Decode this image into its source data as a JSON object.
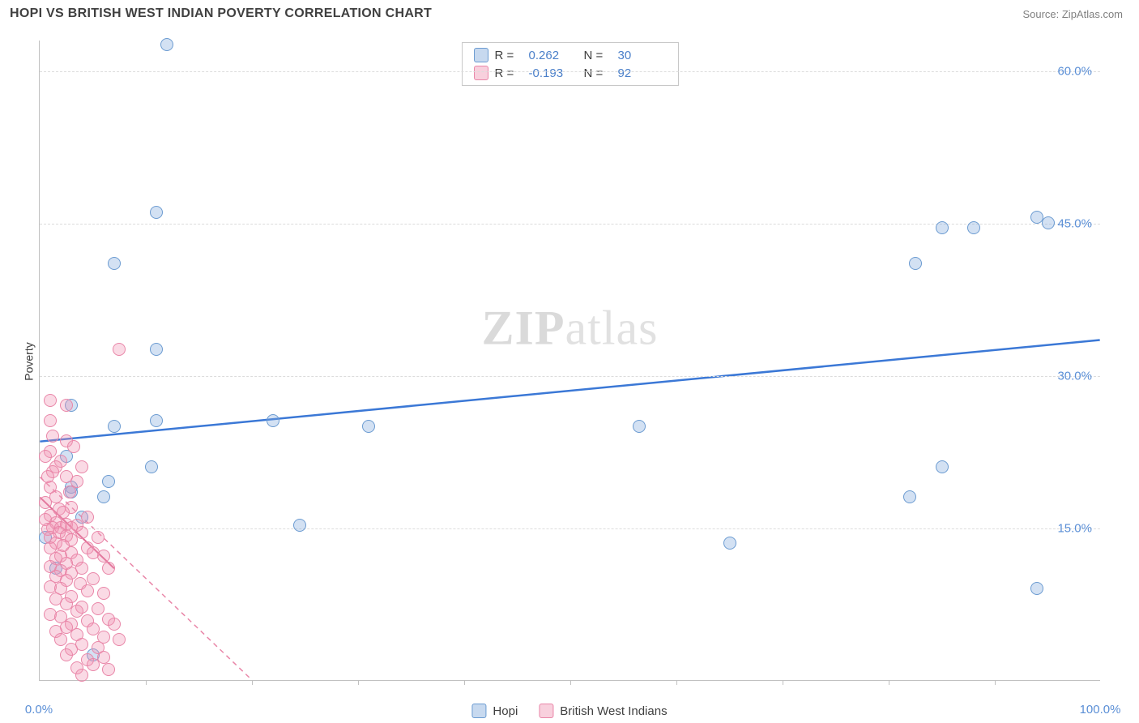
{
  "title": "HOPI VS BRITISH WEST INDIAN POVERTY CORRELATION CHART",
  "source": "Source: ZipAtlas.com",
  "ylabel": "Poverty",
  "watermark": {
    "bold": "ZIP",
    "rest": "atlas"
  },
  "chart": {
    "type": "scatter",
    "xlim": [
      0,
      100
    ],
    "ylim": [
      0,
      63
    ],
    "yticks": [
      15,
      30,
      45,
      60
    ],
    "ytick_labels": [
      "15.0%",
      "30.0%",
      "45.0%",
      "60.0%"
    ],
    "xtick_marks": [
      10,
      20,
      30,
      40,
      50,
      60,
      70,
      80,
      90
    ],
    "xtick_labels": [
      {
        "x": 0,
        "label": "0.0%"
      },
      {
        "x": 100,
        "label": "100.0%"
      }
    ],
    "grid_color": "#dcdcdc",
    "axis_color": "#c0c0c0",
    "background_color": "#ffffff",
    "tick_label_color": "#5b8fd6",
    "marker_size": 16,
    "series": [
      {
        "name": "Hopi",
        "color_fill": "rgba(130,170,220,0.35)",
        "color_stroke": "#6b9bd1",
        "r_value": "0.262",
        "n_value": "30",
        "trend": {
          "x1": 0,
          "y1": 23.5,
          "x2": 100,
          "y2": 33.5,
          "stroke": "#3b78d6",
          "width": 2.5,
          "dash": "none"
        },
        "points": [
          [
            12,
            62.5
          ],
          [
            11,
            46
          ],
          [
            7,
            41
          ],
          [
            11,
            32.5
          ],
          [
            3,
            27
          ],
          [
            7,
            25
          ],
          [
            11,
            25.5
          ],
          [
            22,
            25.5
          ],
          [
            31,
            25
          ],
          [
            56.5,
            25
          ],
          [
            10.5,
            21
          ],
          [
            3,
            19
          ],
          [
            3,
            18.5
          ],
          [
            6,
            18
          ],
          [
            6.5,
            19.5
          ],
          [
            24.5,
            15.2
          ],
          [
            5,
            2.5
          ],
          [
            85,
            44.5
          ],
          [
            88,
            44.5
          ],
          [
            94,
            45.5
          ],
          [
            95,
            45
          ],
          [
            82.5,
            41
          ],
          [
            85,
            21
          ],
          [
            82,
            18
          ],
          [
            65,
            13.5
          ],
          [
            94,
            9
          ],
          [
            2.5,
            22
          ],
          [
            4,
            16
          ],
          [
            0.5,
            14
          ],
          [
            1.5,
            11
          ]
        ]
      },
      {
        "name": "British West Indians",
        "color_fill": "rgba(240,150,180,0.35)",
        "color_stroke": "#e986a8",
        "r_value": "-0.193",
        "n_value": "92",
        "trend": {
          "x1": 0,
          "y1": 20,
          "x2": 20,
          "y2": 0,
          "stroke": "#e986a8",
          "width": 1.5,
          "dash": "6,5"
        },
        "trend_solid": {
          "x1": 0,
          "y1": 18,
          "x2": 7,
          "y2": 11,
          "stroke": "#dc6b93",
          "width": 2,
          "dash": "none"
        },
        "points": [
          [
            7.5,
            32.5
          ],
          [
            1,
            27.5
          ],
          [
            2.5,
            27
          ],
          [
            1,
            25.5
          ],
          [
            1.2,
            24
          ],
          [
            2.5,
            23.5
          ],
          [
            3.2,
            23
          ],
          [
            1,
            22.5
          ],
          [
            0.5,
            22
          ],
          [
            2,
            21.5
          ],
          [
            1.5,
            21
          ],
          [
            4,
            21
          ],
          [
            1.2,
            20.5
          ],
          [
            0.8,
            20
          ],
          [
            2.5,
            20
          ],
          [
            3.5,
            19.5
          ],
          [
            1,
            19
          ],
          [
            2.8,
            18.5
          ],
          [
            1.5,
            18
          ],
          [
            0.5,
            17.5
          ],
          [
            3,
            17
          ],
          [
            1.8,
            16.8
          ],
          [
            2.2,
            16.5
          ],
          [
            1,
            16.2
          ],
          [
            4.5,
            16
          ],
          [
            0.5,
            15.8
          ],
          [
            1.5,
            15.5
          ],
          [
            2.5,
            15.3
          ],
          [
            3.5,
            15.2
          ],
          [
            1.2,
            15
          ],
          [
            2,
            15
          ],
          [
            3,
            15
          ],
          [
            0.8,
            14.8
          ],
          [
            1.8,
            14.5
          ],
          [
            4,
            14.5
          ],
          [
            2.5,
            14.2
          ],
          [
            1,
            14
          ],
          [
            5.5,
            14
          ],
          [
            3,
            13.8
          ],
          [
            1.5,
            13.5
          ],
          [
            2.2,
            13.2
          ],
          [
            4.5,
            13
          ],
          [
            1,
            13
          ],
          [
            3,
            12.5
          ],
          [
            5,
            12.5
          ],
          [
            2,
            12.2
          ],
          [
            1.5,
            12
          ],
          [
            6,
            12.2
          ],
          [
            3.5,
            11.8
          ],
          [
            2.5,
            11.5
          ],
          [
            1,
            11.2
          ],
          [
            4,
            11
          ],
          [
            6.5,
            11
          ],
          [
            2,
            10.8
          ],
          [
            3,
            10.5
          ],
          [
            1.5,
            10.2
          ],
          [
            5,
            10
          ],
          [
            2.5,
            9.8
          ],
          [
            3.8,
            9.5
          ],
          [
            1,
            9.2
          ],
          [
            2,
            9
          ],
          [
            4.5,
            8.8
          ],
          [
            6,
            8.5
          ],
          [
            3,
            8.2
          ],
          [
            1.5,
            8
          ],
          [
            2.5,
            7.5
          ],
          [
            4,
            7.2
          ],
          [
            5.5,
            7
          ],
          [
            3.5,
            6.8
          ],
          [
            1,
            6.5
          ],
          [
            2,
            6.2
          ],
          [
            6.5,
            6
          ],
          [
            4.5,
            5.8
          ],
          [
            3,
            5.5
          ],
          [
            7,
            5.5
          ],
          [
            2.5,
            5.2
          ],
          [
            5,
            5
          ],
          [
            1.5,
            4.8
          ],
          [
            3.5,
            4.5
          ],
          [
            6,
            4.2
          ],
          [
            2,
            4
          ],
          [
            7.5,
            4
          ],
          [
            4,
            3.5
          ],
          [
            5.5,
            3.2
          ],
          [
            3,
            3
          ],
          [
            2.5,
            2.5
          ],
          [
            6,
            2.2
          ],
          [
            4.5,
            2
          ],
          [
            5,
            1.5
          ],
          [
            3.5,
            1.2
          ],
          [
            6.5,
            1
          ],
          [
            4,
            0.5
          ]
        ]
      }
    ]
  },
  "legend_bottom": [
    {
      "label": "Hopi",
      "series": 0
    },
    {
      "label": "British West Indians",
      "series": 1
    }
  ]
}
